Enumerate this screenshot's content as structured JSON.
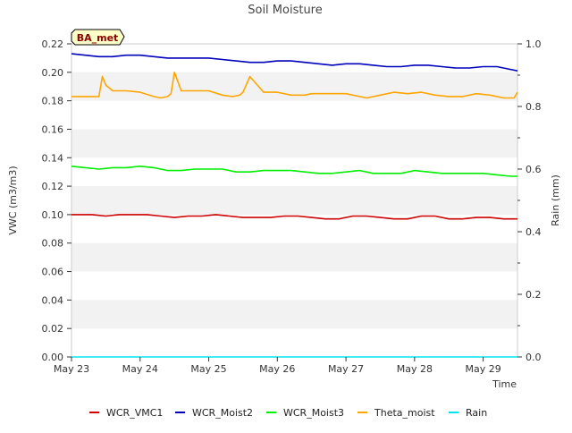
{
  "chart_data": {
    "type": "line",
    "title": "Soil Moisture",
    "site_label": "BA_met",
    "xlabel": "Time",
    "ylabel": "VWC (m3/m3)",
    "ylabel_right": "Rain (mm)",
    "x_ticks": [
      "May 23",
      "May 24",
      "May 25",
      "May 26",
      "May 27",
      "May 28",
      "May 29"
    ],
    "x_range_days": [
      0,
      6.5
    ],
    "ylim": [
      0,
      0.22
    ],
    "y_ticks": [
      "0.00",
      "0.02",
      "0.04",
      "0.06",
      "0.08",
      "0.10",
      "0.12",
      "0.14",
      "0.16",
      "0.18",
      "0.20",
      "0.22"
    ],
    "ylim_right": [
      0,
      1.0
    ],
    "y_right_ticks": [
      "0.0",
      "0.2",
      "0.4",
      "0.6",
      "0.8",
      "1.0"
    ],
    "grid": "horizontal alternating bands",
    "legend_position": "bottom",
    "series": [
      {
        "name": "WCR_VMC1",
        "color": "#cc0000",
        "axis": "left",
        "x": [
          0,
          0.3,
          0.5,
          0.7,
          0.9,
          1.1,
          1.3,
          1.5,
          1.7,
          1.9,
          2.1,
          2.3,
          2.5,
          2.7,
          2.9,
          3.1,
          3.3,
          3.5,
          3.7,
          3.9,
          4.1,
          4.3,
          4.5,
          4.7,
          4.9,
          5.1,
          5.3,
          5.5,
          5.7,
          5.9,
          6.1,
          6.3,
          6.5
        ],
        "values": [
          0.1,
          0.1,
          0.099,
          0.1,
          0.1,
          0.1,
          0.099,
          0.098,
          0.099,
          0.099,
          0.1,
          0.099,
          0.098,
          0.098,
          0.098,
          0.099,
          0.099,
          0.098,
          0.097,
          0.097,
          0.099,
          0.099,
          0.098,
          0.097,
          0.097,
          0.099,
          0.099,
          0.097,
          0.097,
          0.098,
          0.098,
          0.097,
          0.097
        ]
      },
      {
        "name": "WCR_Moist2",
        "color": "#0000bb",
        "axis": "left",
        "x": [
          0,
          0.2,
          0.4,
          0.6,
          0.8,
          1.0,
          1.2,
          1.4,
          1.6,
          1.8,
          2.0,
          2.2,
          2.4,
          2.6,
          2.8,
          3.0,
          3.2,
          3.4,
          3.6,
          3.8,
          4.0,
          4.2,
          4.4,
          4.6,
          4.8,
          5.0,
          5.2,
          5.4,
          5.6,
          5.8,
          6.0,
          6.2,
          6.4,
          6.5
        ],
        "values": [
          0.213,
          0.212,
          0.211,
          0.211,
          0.212,
          0.212,
          0.211,
          0.21,
          0.21,
          0.21,
          0.21,
          0.209,
          0.208,
          0.207,
          0.207,
          0.208,
          0.208,
          0.207,
          0.206,
          0.205,
          0.206,
          0.206,
          0.205,
          0.204,
          0.204,
          0.205,
          0.205,
          0.204,
          0.203,
          0.203,
          0.204,
          0.204,
          0.202,
          0.201
        ]
      },
      {
        "name": "WCR_Moist3",
        "color": "#00ee00",
        "axis": "left",
        "x": [
          0,
          0.2,
          0.4,
          0.6,
          0.8,
          1.0,
          1.2,
          1.4,
          1.6,
          1.8,
          2.0,
          2.2,
          2.4,
          2.6,
          2.8,
          3.0,
          3.2,
          3.4,
          3.6,
          3.8,
          4.0,
          4.2,
          4.4,
          4.6,
          4.8,
          5.0,
          5.2,
          5.4,
          5.6,
          5.8,
          6.0,
          6.2,
          6.4,
          6.5
        ],
        "values": [
          0.134,
          0.133,
          0.132,
          0.133,
          0.133,
          0.134,
          0.133,
          0.131,
          0.131,
          0.132,
          0.132,
          0.132,
          0.13,
          0.13,
          0.131,
          0.131,
          0.131,
          0.13,
          0.129,
          0.129,
          0.13,
          0.131,
          0.129,
          0.129,
          0.129,
          0.131,
          0.13,
          0.129,
          0.129,
          0.129,
          0.129,
          0.128,
          0.127,
          0.127
        ]
      },
      {
        "name": "Theta_moist",
        "color": "#ffa500",
        "axis": "left",
        "x": [
          0,
          0.25,
          0.4,
          0.45,
          0.5,
          0.6,
          0.8,
          1.0,
          1.2,
          1.3,
          1.4,
          1.45,
          1.5,
          1.6,
          1.8,
          2.0,
          2.2,
          2.35,
          2.45,
          2.5,
          2.6,
          2.8,
          3.0,
          3.2,
          3.4,
          3.5,
          3.6,
          3.8,
          4.0,
          4.2,
          4.3,
          4.5,
          4.7,
          4.9,
          5.1,
          5.3,
          5.5,
          5.7,
          5.9,
          6.1,
          6.3,
          6.45,
          6.5
        ],
        "values": [
          0.183,
          0.183,
          0.183,
          0.197,
          0.191,
          0.187,
          0.187,
          0.186,
          0.183,
          0.182,
          0.183,
          0.185,
          0.2,
          0.187,
          0.187,
          0.187,
          0.184,
          0.183,
          0.184,
          0.186,
          0.197,
          0.186,
          0.186,
          0.184,
          0.184,
          0.185,
          0.185,
          0.185,
          0.185,
          0.183,
          0.182,
          0.184,
          0.186,
          0.185,
          0.186,
          0.184,
          0.183,
          0.183,
          0.185,
          0.184,
          0.182,
          0.182,
          0.186
        ]
      },
      {
        "name": "Rain",
        "color": "#00e5ee",
        "axis": "right",
        "x": [
          0,
          6.5
        ],
        "values": [
          0,
          0
        ]
      }
    ]
  }
}
